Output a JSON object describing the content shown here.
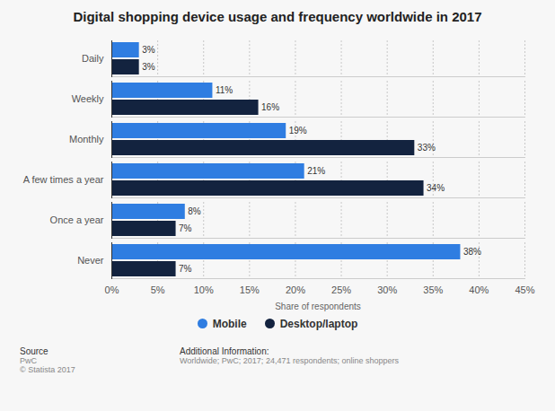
{
  "chart_data": {
    "type": "bar",
    "title": "Digital shopping device usage and frequency worldwide in 2017",
    "orientation": "horizontal",
    "categories": [
      "Daily",
      "Weekly",
      "Monthly",
      "A few times a year",
      "Once a year",
      "Never"
    ],
    "series": [
      {
        "name": "Mobile",
        "color": "#2f7de1",
        "values": [
          3,
          11,
          19,
          21,
          8,
          38
        ],
        "value_labels": [
          "3%",
          "11%",
          "19%",
          "21%",
          "8%",
          "38%"
        ]
      },
      {
        "name": "Desktop/laptop",
        "color": "#13233f",
        "values": [
          3,
          16,
          33,
          34,
          7,
          7
        ],
        "value_labels": [
          "3%",
          "16%",
          "33%",
          "34%",
          "7%",
          "7%"
        ]
      }
    ],
    "xlabel": "Share of respondents",
    "xlim": [
      0,
      45
    ],
    "xticks": [
      {
        "value": 0,
        "label": "0%"
      },
      {
        "value": 5,
        "label": "5%"
      },
      {
        "value": 10,
        "label": "10%"
      },
      {
        "value": 15,
        "label": "15%"
      },
      {
        "value": 20,
        "label": "20%"
      },
      {
        "value": 25,
        "label": "25%"
      },
      {
        "value": 30,
        "label": "30%"
      },
      {
        "value": 35,
        "label": "35%"
      },
      {
        "value": 40,
        "label": "40%"
      },
      {
        "value": 45,
        "label": "45%"
      }
    ],
    "grid": true,
    "data_labels": true,
    "legend": "bottom",
    "source": {
      "heading": "Source",
      "lines": [
        "PwC",
        "© Statista 2017"
      ]
    },
    "additional_information": {
      "heading": "Additional Information:",
      "lines": [
        "Worldwide; PwC; 2017; 24,471 respondents; online shoppers"
      ]
    }
  }
}
